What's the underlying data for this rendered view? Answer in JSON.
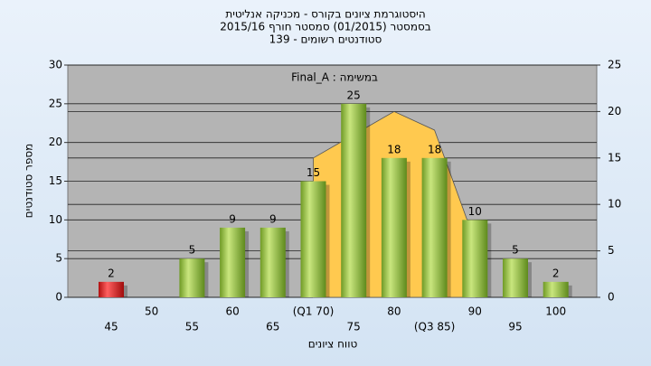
{
  "chart_data": {
    "type": "bar",
    "title": [
      "היסטוגרמת ציונים בקורס - מכניקה אנליטית",
      "בסמסטר  (01/2015)  סמסטר חורף 2015/16",
      "סטודנטים רשומים - 139"
    ],
    "annotation": "במשימה : Final_A",
    "x_label": "טווח ציונים",
    "y_label": "מספר סטודנטים",
    "categories": [
      "45",
      "50",
      "55",
      "60",
      "65",
      "(Q1 70)",
      "75",
      "80",
      "(Q3 85)",
      "90",
      "95",
      "100"
    ],
    "values": [
      2,
      null,
      5,
      9,
      9,
      15,
      25,
      18,
      18,
      10,
      5,
      2
    ],
    "colors": [
      "#e02020",
      "#8fbf3a",
      "#8fbf3a",
      "#8fbf3a",
      "#8fbf3a",
      "#8fbf3a",
      "#8fbf3a",
      "#8fbf3a",
      "#8fbf3a",
      "#8fbf3a",
      "#8fbf3a",
      "#8fbf3a"
    ],
    "curve": {
      "color": "#ffc94f",
      "axis": "y2",
      "values": [
        null,
        null,
        null,
        null,
        null,
        15,
        17.5,
        20,
        18,
        6,
        null,
        null
      ]
    },
    "ylim": [
      0,
      30
    ],
    "yticks": [
      0,
      5,
      10,
      15,
      20,
      25,
      30
    ],
    "y2lim": [
      0,
      25
    ],
    "y2ticks": [
      0,
      5,
      10,
      15,
      20,
      25
    ],
    "grid": true
  }
}
